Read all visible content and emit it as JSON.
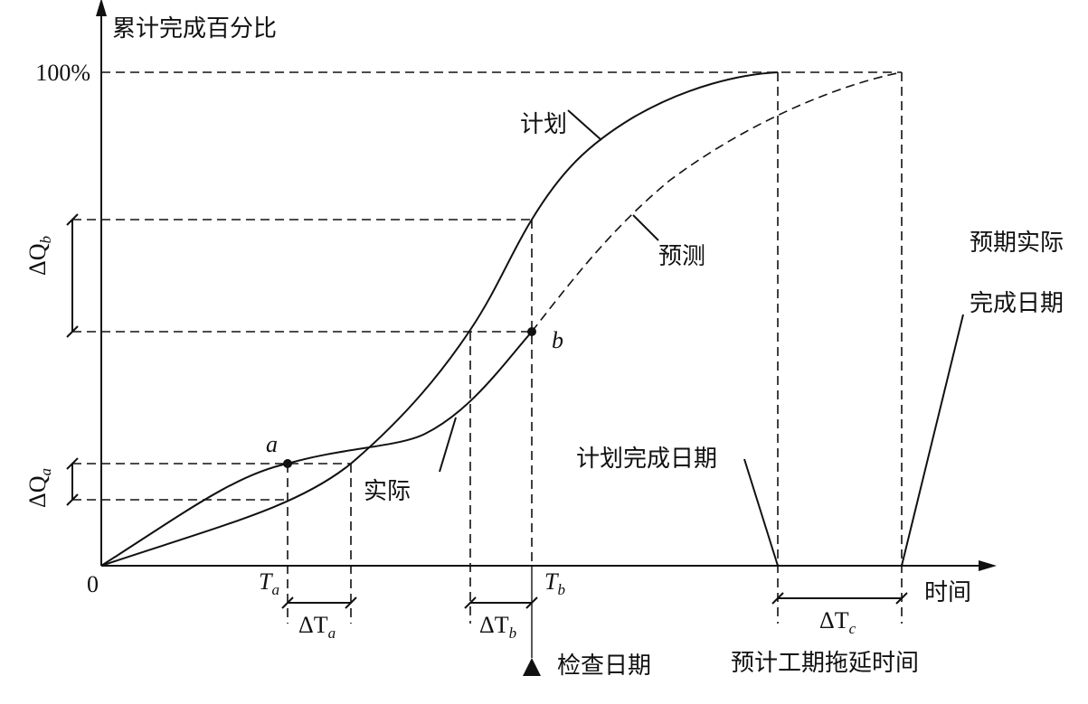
{
  "y_axis_label": "累计完成百分比",
  "top_tick": "100%",
  "origin_label": "0",
  "x_axis_label": "时间",
  "curves": {
    "plan": "计划",
    "forecast": "预测",
    "actual": "实际"
  },
  "points": {
    "a": "a",
    "b": "b"
  },
  "times": {
    "ta": {
      "main": "T",
      "sub": "a"
    },
    "tb": {
      "main": "T",
      "sub": "b"
    }
  },
  "deltas": {
    "dta": {
      "main": "ΔT",
      "sub": "a"
    },
    "dtb": {
      "main": "ΔT",
      "sub": "b"
    },
    "dtc": {
      "main": "ΔT",
      "sub": "c"
    },
    "dqa": {
      "main": "ΔQ",
      "sub": "a"
    },
    "dqb": {
      "main": "ΔQ",
      "sub": "b"
    }
  },
  "annotations": {
    "check_date": "检查日期",
    "plan_finish": "计划完成日期",
    "expected_finish": [
      "预期实际",
      "完成日期"
    ],
    "delay": "预计工期拖延时间"
  }
}
